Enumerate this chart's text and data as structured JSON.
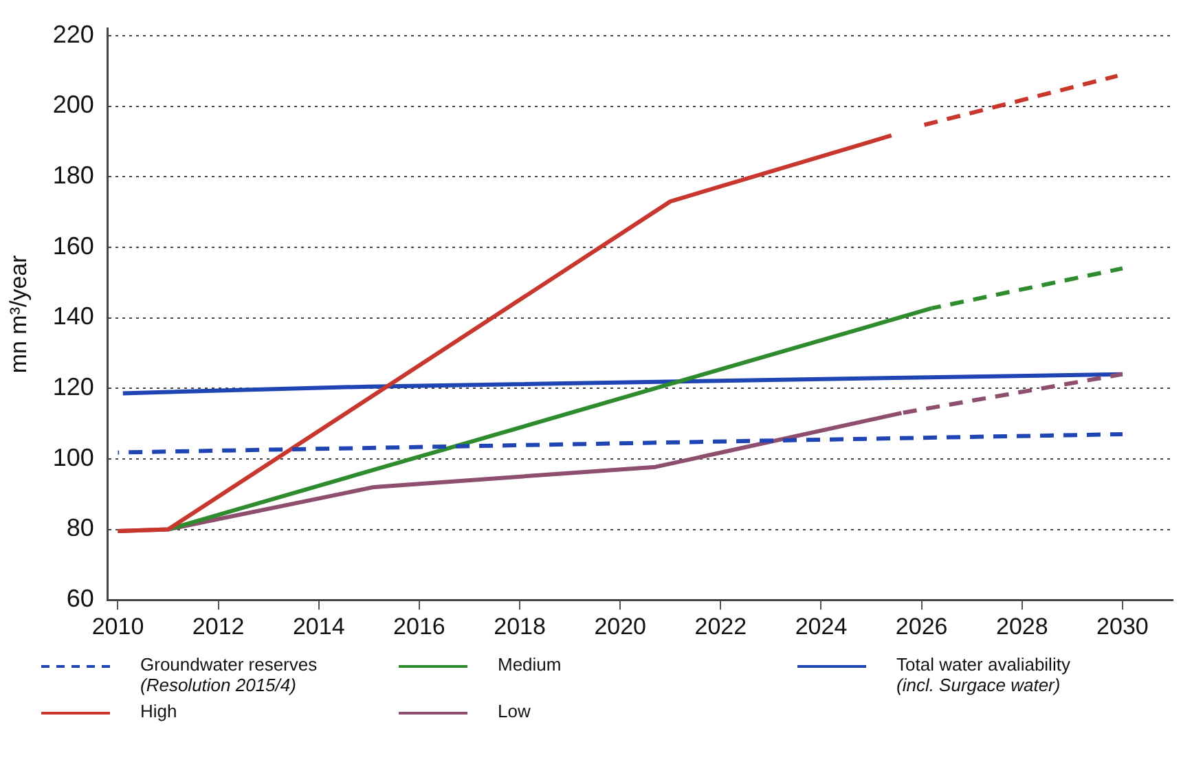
{
  "chart_data": {
    "type": "line",
    "ylabel": "mn m³/year",
    "xlim": [
      2009.8,
      2031
    ],
    "xticks": [
      2010,
      2012,
      2014,
      2016,
      2018,
      2020,
      2022,
      2024,
      2026,
      2028,
      2030
    ],
    "ylim": [
      60,
      222
    ],
    "yticks": [
      60,
      80,
      100,
      120,
      140,
      160,
      180,
      200,
      220
    ],
    "grid": "y",
    "legend": "bottom",
    "marker": "none",
    "series": [
      {
        "name": "Groundwater reserves\n(Resolution 2015/4)",
        "color": "#1f45b5",
        "line_style": "dashed",
        "x": [
          2010,
          2030
        ],
        "values": [
          101.8,
          107
        ]
      },
      {
        "name": "High",
        "color": "#c8372d",
        "line_style": "solid",
        "x": [
          2010,
          2011,
          2021,
          2025.4
        ],
        "values": [
          79.5,
          80,
          173,
          191.7
        ]
      },
      {
        "color": "#c8372d",
        "line_style": "dashed",
        "x": [
          2026,
          2029.9
        ],
        "values": [
          194.5,
          208.6
        ]
      },
      {
        "name": "Medium",
        "color": "#2e8b2e",
        "line_style": "solid",
        "x": [
          2011,
          2026.2
        ],
        "values": [
          80,
          142.7
        ]
      },
      {
        "color": "#2e8b2e",
        "line_style": "dashed",
        "x": [
          2026.2,
          2030
        ],
        "values": [
          142.7,
          154
        ]
      },
      {
        "name": "Low",
        "color": "#8e4e6e",
        "line_style": "solid",
        "x": [
          2010,
          2011,
          2015.1,
          2020.7,
          2025.6
        ],
        "values": [
          79.5,
          80,
          92,
          97.7,
          113
        ]
      },
      {
        "color": "#8e4e6e",
        "line_style": "dashed",
        "x": [
          2025.6,
          2030
        ],
        "values": [
          113,
          124
        ]
      },
      {
        "name": "Total water avaliability\n(incl. Surgace water)",
        "color": "#1f45b5",
        "line_style": "solid",
        "x": [
          2010.1,
          2015,
          2030
        ],
        "values": [
          118.6,
          120.5,
          124
        ]
      }
    ]
  }
}
